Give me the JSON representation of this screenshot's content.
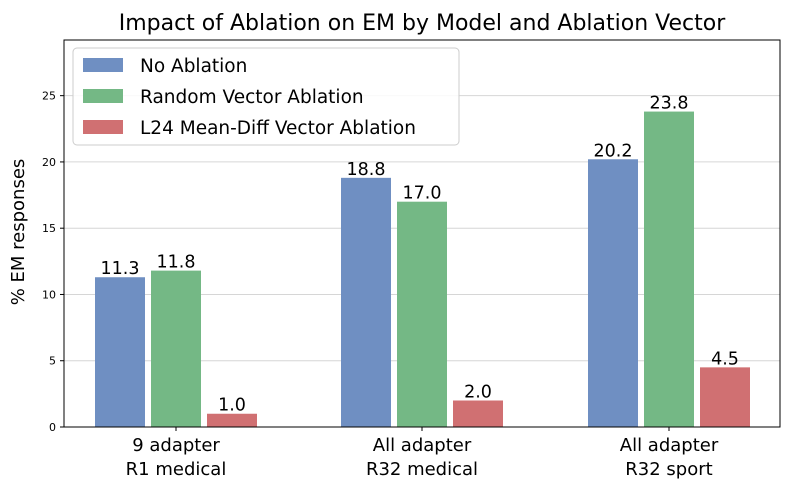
{
  "chart_data": {
    "type": "bar",
    "title": "Impact of Ablation on EM by Model and Ablation Vector",
    "ylabel": "% EM responses",
    "xlabel": "",
    "ylim": [
      0,
      29.2
    ],
    "yticks": [
      0,
      5,
      10,
      15,
      20,
      25
    ],
    "grid": "horizontal",
    "legend_position": "top-left",
    "categories": [
      [
        "9 adapter",
        "R1 medical"
      ],
      [
        "All adapter",
        "R32 medical"
      ],
      [
        "All adapter",
        "R32 sport"
      ]
    ],
    "series": [
      {
        "name": "No Ablation",
        "color": "#6f8fc2",
        "values": [
          11.3,
          18.8,
          20.2
        ],
        "labels": [
          "11.3",
          "18.8",
          "20.2"
        ]
      },
      {
        "name": "Random Vector Ablation",
        "color": "#74b885",
        "values": [
          11.8,
          17.0,
          23.8
        ],
        "labels": [
          "11.8",
          "17.0",
          "23.8"
        ]
      },
      {
        "name": "L24 Mean-Diff Vector Ablation",
        "color": "#d07072",
        "values": [
          1.0,
          2.0,
          4.5
        ],
        "labels": [
          "1.0",
          "2.0",
          "4.5"
        ]
      }
    ]
  }
}
